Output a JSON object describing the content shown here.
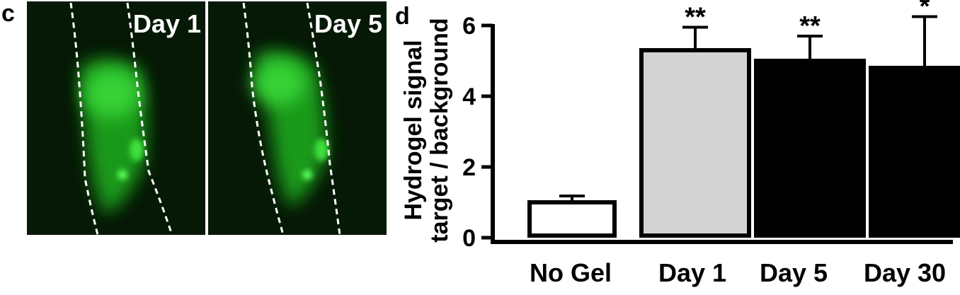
{
  "panel_c": {
    "letter": "c",
    "images": [
      {
        "label": "Day 1"
      },
      {
        "label": "Day 5"
      }
    ]
  },
  "panel_d": {
    "letter": "d"
  },
  "chart_data": {
    "type": "bar",
    "categories": [
      "No Gel",
      "Day 1",
      "Day 5",
      "Day 30"
    ],
    "values": [
      1.0,
      5.3,
      5.0,
      4.8
    ],
    "error": [
      0.18,
      0.65,
      0.7,
      1.45
    ],
    "significance": [
      "",
      "**",
      "**",
      "*"
    ],
    "bar_fills": [
      "#ffffff",
      "#d3d3d3",
      "#000000",
      "#000000"
    ],
    "ylabel_line1": "Hydrogel signal",
    "ylabel_line2": "target / background",
    "xlabel": "",
    "ylim": [
      0,
      6
    ],
    "yticks": [
      0,
      2,
      4,
      6
    ],
    "grid": false
  }
}
